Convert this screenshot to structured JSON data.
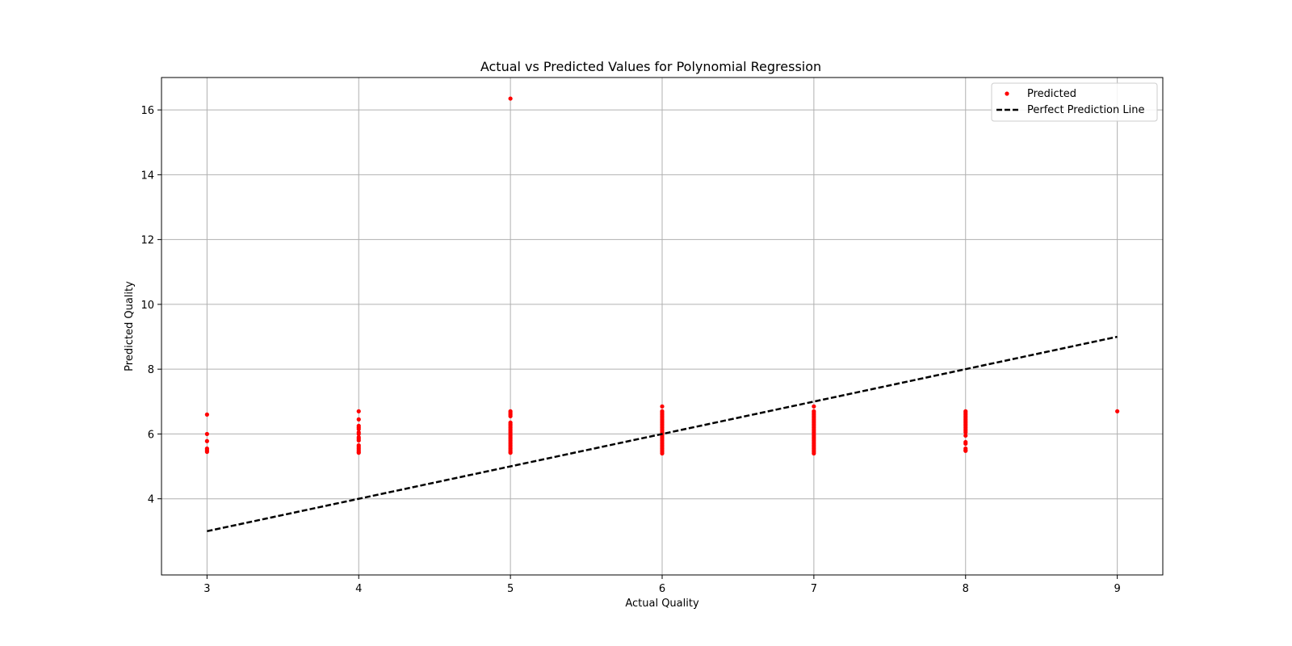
{
  "chart_data": {
    "type": "scatter",
    "title": "Actual vs Predicted Values for Polynomial Regression",
    "xlabel": "Actual Quality",
    "ylabel": "Predicted Quality",
    "xlim": [
      2.7,
      9.3
    ],
    "ylim": [
      1.65,
      17.0
    ],
    "xticks": [
      3,
      4,
      5,
      6,
      7,
      8,
      9
    ],
    "yticks": [
      4,
      6,
      8,
      10,
      12,
      14,
      16
    ],
    "grid": true,
    "legend_position": "top-right",
    "colors": {
      "points": "#ff0000",
      "line": "#000000",
      "grid": "#b0b0b0"
    },
    "series": [
      {
        "name": "Predicted",
        "kind": "scatter",
        "points": [
          [
            3,
            6.6
          ],
          [
            3,
            6.0
          ],
          [
            3,
            5.78
          ],
          [
            3,
            5.55
          ],
          [
            3,
            5.5
          ],
          [
            3,
            5.45
          ],
          [
            4,
            6.7
          ],
          [
            4,
            6.45
          ],
          [
            4,
            6.25
          ],
          [
            4,
            6.2
          ],
          [
            4,
            6.15
          ],
          [
            4,
            6.05
          ],
          [
            4,
            6.0
          ],
          [
            4,
            5.9
          ],
          [
            4,
            5.85
          ],
          [
            4,
            5.8
          ],
          [
            4,
            5.65
          ],
          [
            4,
            5.6
          ],
          [
            4,
            5.55
          ],
          [
            4,
            5.5
          ],
          [
            4,
            5.45
          ],
          [
            4,
            5.42
          ],
          [
            5,
            16.35
          ],
          [
            5,
            6.7
          ],
          [
            5,
            6.65
          ],
          [
            5,
            6.6
          ],
          [
            5,
            6.55
          ],
          [
            5,
            6.35
          ],
          [
            5,
            6.3
          ],
          [
            5,
            6.25
          ],
          [
            5,
            6.2
          ],
          [
            5,
            6.15
          ],
          [
            5,
            6.1
          ],
          [
            5,
            6.05
          ],
          [
            5,
            6.0
          ],
          [
            5,
            5.95
          ],
          [
            5,
            5.9
          ],
          [
            5,
            5.85
          ],
          [
            5,
            5.8
          ],
          [
            5,
            5.75
          ],
          [
            5,
            5.7
          ],
          [
            5,
            5.65
          ],
          [
            5,
            5.6
          ],
          [
            5,
            5.55
          ],
          [
            5,
            5.5
          ],
          [
            5,
            5.45
          ],
          [
            5,
            5.42
          ],
          [
            6,
            6.85
          ],
          [
            6,
            6.7
          ],
          [
            6,
            6.65
          ],
          [
            6,
            6.6
          ],
          [
            6,
            6.55
          ],
          [
            6,
            6.5
          ],
          [
            6,
            6.45
          ],
          [
            6,
            6.4
          ],
          [
            6,
            6.35
          ],
          [
            6,
            6.3
          ],
          [
            6,
            6.25
          ],
          [
            6,
            6.2
          ],
          [
            6,
            6.15
          ],
          [
            6,
            6.1
          ],
          [
            6,
            6.05
          ],
          [
            6,
            6.0
          ],
          [
            6,
            5.95
          ],
          [
            6,
            5.9
          ],
          [
            6,
            5.85
          ],
          [
            6,
            5.8
          ],
          [
            6,
            5.75
          ],
          [
            6,
            5.7
          ],
          [
            6,
            5.65
          ],
          [
            6,
            5.6
          ],
          [
            6,
            5.55
          ],
          [
            6,
            5.5
          ],
          [
            6,
            5.45
          ],
          [
            6,
            5.4
          ],
          [
            7,
            6.85
          ],
          [
            7,
            6.7
          ],
          [
            7,
            6.65
          ],
          [
            7,
            6.6
          ],
          [
            7,
            6.55
          ],
          [
            7,
            6.5
          ],
          [
            7,
            6.45
          ],
          [
            7,
            6.4
          ],
          [
            7,
            6.35
          ],
          [
            7,
            6.3
          ],
          [
            7,
            6.25
          ],
          [
            7,
            6.2
          ],
          [
            7,
            6.15
          ],
          [
            7,
            6.1
          ],
          [
            7,
            6.05
          ],
          [
            7,
            6.0
          ],
          [
            7,
            5.95
          ],
          [
            7,
            5.9
          ],
          [
            7,
            5.85
          ],
          [
            7,
            5.8
          ],
          [
            7,
            5.75
          ],
          [
            7,
            5.7
          ],
          [
            7,
            5.65
          ],
          [
            7,
            5.6
          ],
          [
            7,
            5.55
          ],
          [
            7,
            5.5
          ],
          [
            7,
            5.45
          ],
          [
            7,
            5.4
          ],
          [
            8,
            6.7
          ],
          [
            8,
            6.65
          ],
          [
            8,
            6.6
          ],
          [
            8,
            6.55
          ],
          [
            8,
            6.5
          ],
          [
            8,
            6.45
          ],
          [
            8,
            6.4
          ],
          [
            8,
            6.35
          ],
          [
            8,
            6.3
          ],
          [
            8,
            6.25
          ],
          [
            8,
            6.2
          ],
          [
            8,
            6.15
          ],
          [
            8,
            6.1
          ],
          [
            8,
            6.05
          ],
          [
            8,
            5.95
          ],
          [
            8,
            5.75
          ],
          [
            8,
            5.7
          ],
          [
            8,
            5.55
          ],
          [
            8,
            5.5
          ],
          [
            8,
            5.48
          ],
          [
            9,
            6.7
          ]
        ]
      },
      {
        "name": "Perfect Prediction Line",
        "kind": "line",
        "style": "dashed",
        "points": [
          [
            3,
            3
          ],
          [
            9,
            9
          ]
        ]
      }
    ]
  }
}
